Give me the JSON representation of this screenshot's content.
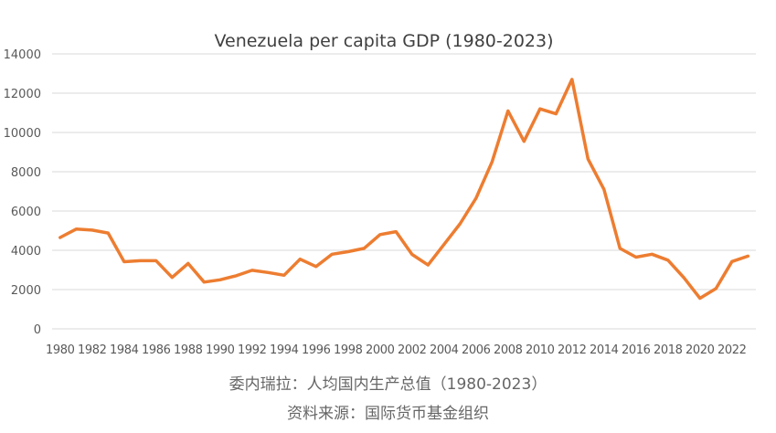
{
  "chart_data": {
    "type": "line",
    "title": "Venezuela  per capita GDP (1980-2023)",
    "xlabel": "",
    "ylabel": "",
    "ylim": [
      0,
      14000
    ],
    "y_ticks": [
      0,
      2000,
      4000,
      6000,
      8000,
      10000,
      12000,
      14000
    ],
    "x_tick_labels": [
      "1980",
      "1982",
      "1984",
      "1986",
      "1988",
      "1990",
      "1992",
      "1994",
      "1996",
      "1998",
      "2000",
      "2002",
      "2004",
      "2006",
      "2008",
      "2010",
      "2012",
      "2014",
      "2016",
      "2018",
      "2020",
      "2022"
    ],
    "grid": true,
    "legend": "none",
    "series": [
      {
        "name": "Venezuela per capita GDP",
        "color": "#ED7D31",
        "x": [
          1980,
          1981,
          1982,
          1983,
          1984,
          1985,
          1986,
          1987,
          1988,
          1989,
          1990,
          1991,
          1992,
          1993,
          1994,
          1995,
          1996,
          1997,
          1998,
          1999,
          2000,
          2001,
          2002,
          2003,
          2004,
          2005,
          2006,
          2007,
          2008,
          2009,
          2010,
          2011,
          2012,
          2013,
          2014,
          2015,
          2016,
          2017,
          2018,
          2019,
          2020,
          2021,
          2022,
          2023
        ],
        "values": [
          4650,
          5080,
          5030,
          4880,
          3420,
          3470,
          3470,
          2620,
          3330,
          2380,
          2500,
          2700,
          2980,
          2870,
          2730,
          3550,
          3170,
          3800,
          3930,
          4100,
          4800,
          4950,
          3790,
          3250,
          4300,
          5350,
          6650,
          8500,
          11100,
          9550,
          11200,
          10950,
          12700,
          8650,
          7100,
          4100,
          3650,
          3800,
          3500,
          2600,
          1560,
          2050,
          3430,
          3700
        ]
      }
    ]
  },
  "captions": {
    "line1": "委内瑞拉：人均国内生产总值（1980-2023）",
    "line2": "资料来源：国际货币基金组织"
  },
  "colors": {
    "grid": "#D9D9D9",
    "axis_text": "#595959",
    "caption_text": "#666666"
  }
}
